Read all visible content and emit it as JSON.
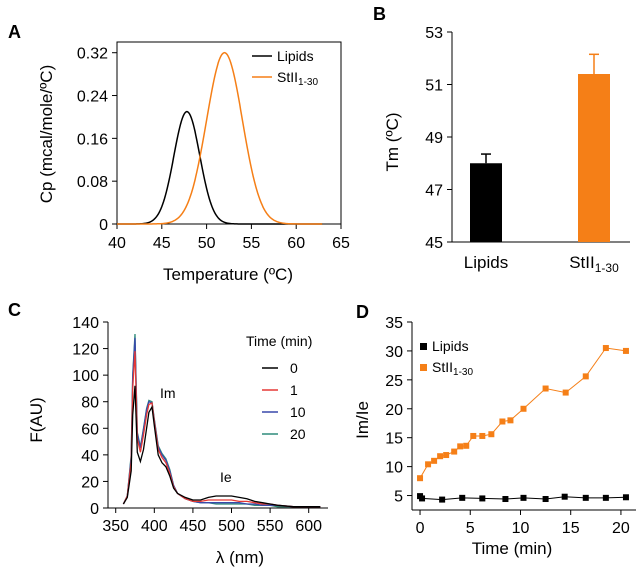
{
  "colors": {
    "lipids": "#000000",
    "stii": "#f57f17",
    "t0": "#000000",
    "t1": "#e53935",
    "t10": "#3949ab",
    "t20": "#2e8b7a"
  },
  "chart_data": [
    {
      "panel": "A",
      "type": "line",
      "xlabel": "Temperature (ºC)",
      "ylabel": "Cp (mcal/mole/ºC)",
      "xlim": [
        40,
        65
      ],
      "ylim": [
        0,
        0.34
      ],
      "xticks": [
        "40",
        "45",
        "50",
        "55",
        "60",
        "65"
      ],
      "yticks": [
        "0",
        "0.08",
        "0.16",
        "0.24",
        "0.32"
      ],
      "legend": [
        "Lipids",
        "StII1-30"
      ],
      "series": [
        {
          "name": "Lipids",
          "peak_x": 47.8,
          "peak_y": 0.21,
          "width": 1.45
        },
        {
          "name": "StII1-30",
          "peak_x": 52.0,
          "peak_y": 0.32,
          "width": 2.0
        }
      ]
    },
    {
      "panel": "B",
      "type": "bar",
      "ylabel": "Tm (ºC)",
      "ylim": [
        45,
        53
      ],
      "yticks": [
        "45",
        "47",
        "49",
        "51",
        "53"
      ],
      "categories": [
        "Lipids",
        "StII1-30"
      ],
      "values": [
        48.0,
        51.4
      ],
      "errors": [
        0.35,
        0.75
      ]
    },
    {
      "panel": "C",
      "type": "line",
      "xlabel": "λ (nm)",
      "ylabel": "F(AU)",
      "xlim": [
        340,
        625
      ],
      "ylim": [
        0,
        140
      ],
      "xticks": [
        "350",
        "400",
        "450",
        "500",
        "550",
        "600"
      ],
      "yticks": [
        "0",
        "20",
        "40",
        "60",
        "80",
        "100",
        "120",
        "140"
      ],
      "legend_title": "Time (min)",
      "annotations": [
        "Im",
        "Ie"
      ],
      "series": [
        {
          "name": "0",
          "x": [
            360,
            365,
            370,
            372,
            375,
            378,
            382,
            386,
            390,
            393,
            397,
            400,
            405,
            410,
            415,
            420,
            425,
            430,
            440,
            450,
            460,
            470,
            480,
            490,
            500,
            510,
            520,
            530,
            540,
            550,
            560,
            580,
            600,
            615
          ],
          "y": [
            3,
            8,
            28,
            70,
            92,
            42,
            35,
            44,
            60,
            72,
            76,
            62,
            40,
            34,
            31,
            24,
            15,
            11,
            8,
            6,
            6,
            8,
            9,
            9,
            9,
            8,
            7,
            5,
            4,
            3,
            2,
            1,
            1,
            1
          ]
        },
        {
          "name": "1",
          "x": [
            360,
            365,
            370,
            372,
            375,
            378,
            382,
            386,
            390,
            393,
            397,
            400,
            405,
            410,
            415,
            420,
            425,
            430,
            440,
            450,
            460,
            470,
            480,
            490,
            500,
            510,
            520,
            530,
            540,
            550,
            560,
            580,
            600,
            615
          ],
          "y": [
            3,
            9,
            35,
            90,
            118,
            52,
            42,
            55,
            70,
            78,
            79,
            65,
            44,
            38,
            34,
            26,
            16,
            11,
            7,
            5,
            5,
            6,
            6,
            6,
            6,
            5,
            5,
            4,
            3,
            3,
            2,
            1,
            1,
            1
          ]
        },
        {
          "name": "10",
          "x": [
            360,
            365,
            370,
            372,
            375,
            378,
            382,
            386,
            390,
            393,
            397,
            400,
            405,
            410,
            415,
            420,
            425,
            430,
            440,
            450,
            460,
            470,
            480,
            490,
            500,
            510,
            520,
            530,
            540,
            550,
            560,
            580,
            600,
            615
          ],
          "y": [
            3,
            9,
            38,
            98,
            128,
            56,
            45,
            59,
            74,
            80,
            79,
            66,
            46,
            40,
            36,
            28,
            17,
            11,
            7,
            5,
            4,
            4,
            4,
            4,
            4,
            4,
            3,
            3,
            2,
            2,
            2,
            1,
            1,
            1
          ]
        },
        {
          "name": "20",
          "x": [
            360,
            365,
            370,
            372,
            375,
            378,
            382,
            386,
            390,
            393,
            397,
            400,
            405,
            410,
            415,
            420,
            425,
            430,
            440,
            450,
            460,
            470,
            480,
            490,
            500,
            510,
            520,
            530,
            540,
            550,
            560,
            580,
            600,
            615
          ],
          "y": [
            3,
            9,
            40,
            100,
            131,
            57,
            46,
            60,
            75,
            81,
            80,
            67,
            47,
            41,
            37,
            29,
            17,
            11,
            7,
            5,
            4,
            4,
            3,
            3,
            3,
            3,
            3,
            2,
            2,
            2,
            1,
            1,
            1,
            1
          ]
        }
      ]
    },
    {
      "panel": "D",
      "type": "scatter",
      "xlabel": "Time (min)",
      "ylabel": "Im/Ie",
      "xlim": [
        -0.8,
        21.5
      ],
      "ylim": [
        2.5,
        35
      ],
      "xticks": [
        "0",
        "5",
        "10",
        "15",
        "20"
      ],
      "yticks": [
        "5",
        "10",
        "15",
        "20",
        "25",
        "30",
        "35"
      ],
      "legend": [
        "Lipids",
        "StII1-30"
      ],
      "series": [
        {
          "name": "Lipids",
          "x": [
            0,
            0.2,
            2.2,
            4.2,
            6.2,
            8.5,
            10.3,
            12.5,
            14.4,
            16.5,
            18.5,
            20.5
          ],
          "y": [
            4.9,
            4.5,
            4.3,
            4.6,
            4.5,
            4.4,
            4.6,
            4.4,
            4.8,
            4.6,
            4.6,
            4.7
          ]
        },
        {
          "name": "StII1-30",
          "x": [
            0,
            0.8,
            1.4,
            2.0,
            2.6,
            3.4,
            4.0,
            4.6,
            5.3,
            6.2,
            7.1,
            8.2,
            9.0,
            10.3,
            12.5,
            14.5,
            16.5,
            18.5,
            20.5
          ],
          "y": [
            8.0,
            10.4,
            11.0,
            11.8,
            12.0,
            12.6,
            13.5,
            13.6,
            15.3,
            15.3,
            15.6,
            17.8,
            18.0,
            20.0,
            23.5,
            22.8,
            25.6,
            30.5,
            30.0
          ]
        }
      ]
    }
  ]
}
